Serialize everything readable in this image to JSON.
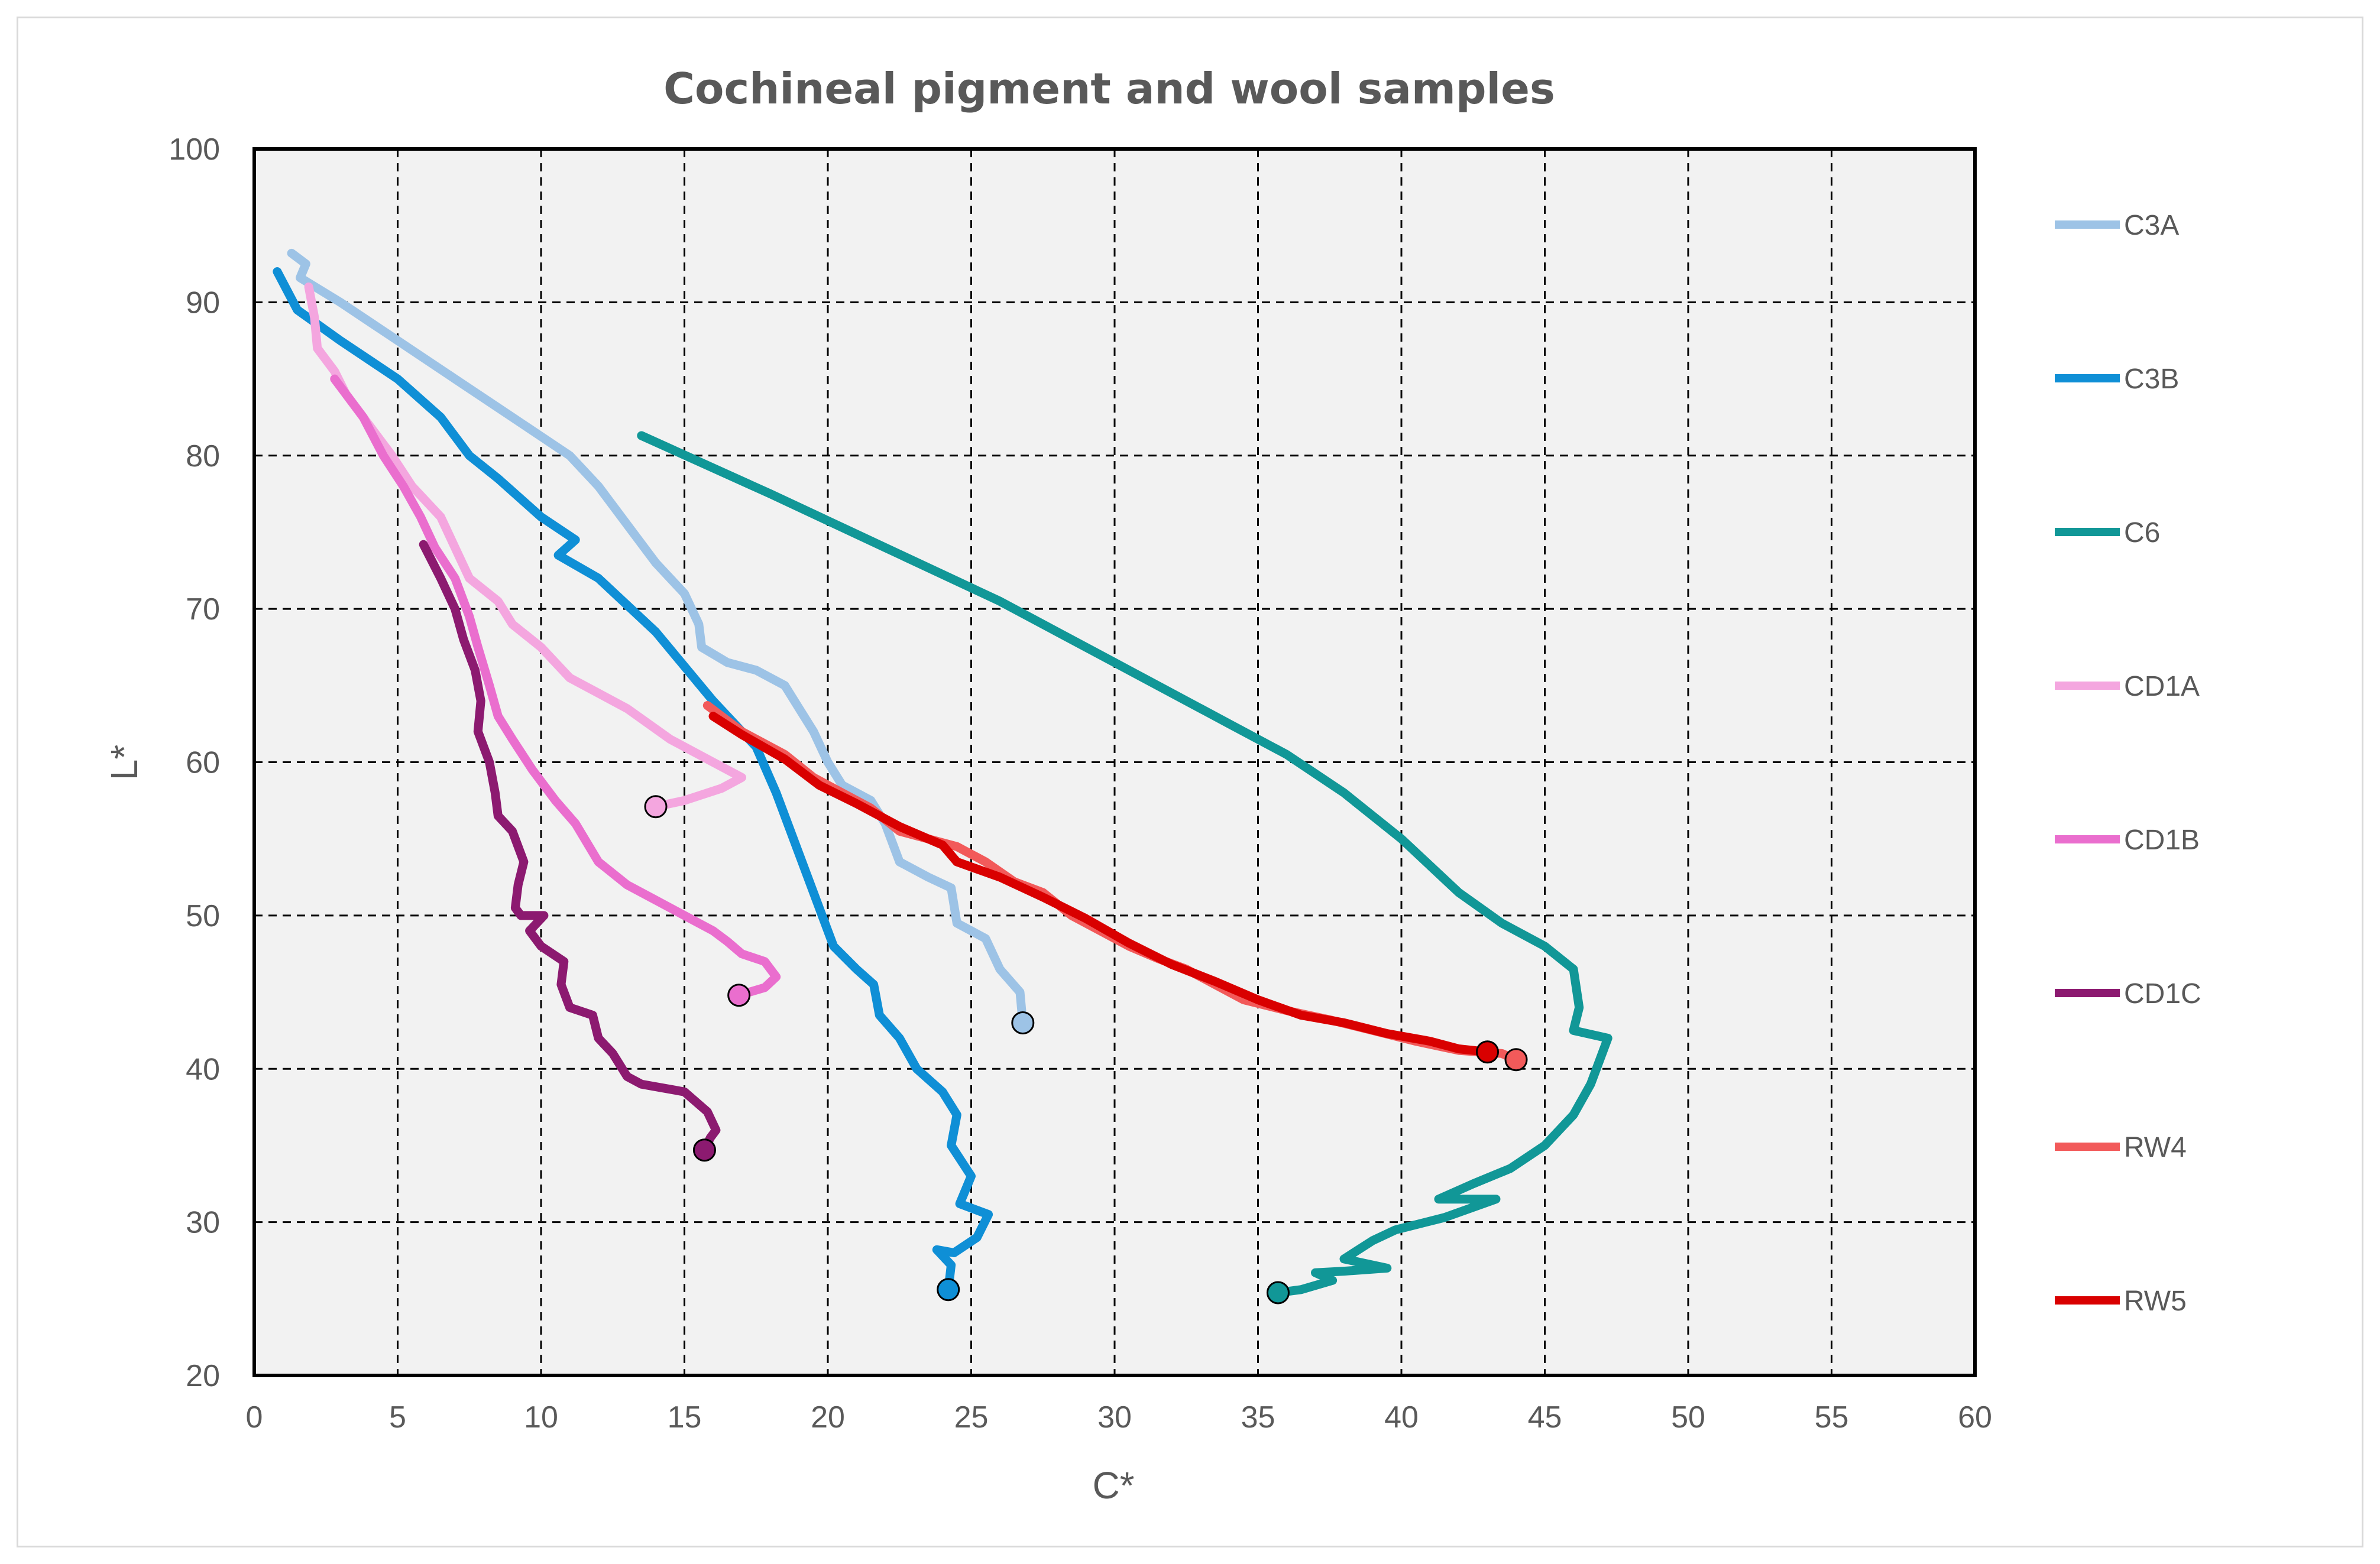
{
  "chart_data": {
    "type": "line",
    "title": "Cochineal pigment and wool samples",
    "xlabel": "C*",
    "ylabel": "L*",
    "xlim": [
      0,
      60
    ],
    "ylim": [
      20,
      100
    ],
    "xticks": [
      0,
      5,
      10,
      15,
      20,
      25,
      30,
      35,
      40,
      45,
      50,
      55,
      60
    ],
    "yticks": [
      20,
      30,
      40,
      50,
      60,
      70,
      80,
      90,
      100
    ],
    "grid": true,
    "legend_position": "right",
    "series": [
      {
        "name": "C3A",
        "color": "#9dc3e6",
        "points": [
          [
            1.3,
            93.2
          ],
          [
            1.8,
            92.5
          ],
          [
            1.6,
            91.6
          ],
          [
            3,
            90
          ],
          [
            5,
            87.5
          ],
          [
            7,
            85
          ],
          [
            9,
            82.5
          ],
          [
            11,
            80
          ],
          [
            12,
            78
          ],
          [
            13,
            75.5
          ],
          [
            14,
            73
          ],
          [
            15,
            71
          ],
          [
            15.5,
            69
          ],
          [
            15.6,
            67.5
          ],
          [
            16.5,
            66.5
          ],
          [
            17.5,
            66
          ],
          [
            18.5,
            65
          ],
          [
            19,
            63.5
          ],
          [
            19.5,
            62
          ],
          [
            20,
            60
          ],
          [
            20.5,
            58.5
          ],
          [
            21.5,
            57.5
          ],
          [
            22,
            56
          ],
          [
            22.5,
            53.5
          ],
          [
            23.5,
            52.5
          ],
          [
            24.3,
            51.8
          ],
          [
            24.5,
            49.5
          ],
          [
            25.5,
            48.5
          ],
          [
            26,
            46.5
          ],
          [
            26.7,
            45
          ],
          [
            26.8,
            43
          ]
        ],
        "end_marker": [
          26.8,
          43.0
        ]
      },
      {
        "name": "C3B",
        "color": "#0f8fd6",
        "points": [
          [
            0.8,
            92
          ],
          [
            1.5,
            89.5
          ],
          [
            3,
            87.5
          ],
          [
            5,
            85
          ],
          [
            6.5,
            82.5
          ],
          [
            7.5,
            80
          ],
          [
            8.5,
            78.5
          ],
          [
            10,
            76
          ],
          [
            11.2,
            74.5
          ],
          [
            10.6,
            73.5
          ],
          [
            12,
            72
          ],
          [
            14,
            68.5
          ],
          [
            16,
            64
          ],
          [
            17.5,
            61
          ],
          [
            18.2,
            58
          ],
          [
            19,
            54
          ],
          [
            19.8,
            50
          ],
          [
            20.2,
            48
          ],
          [
            21,
            46.5
          ],
          [
            21.6,
            45.5
          ],
          [
            21.8,
            43.5
          ],
          [
            22.5,
            42
          ],
          [
            23.1,
            40
          ],
          [
            24,
            38.5
          ],
          [
            24.5,
            37
          ],
          [
            24.3,
            35
          ],
          [
            25,
            33
          ],
          [
            24.6,
            31.2
          ],
          [
            25.6,
            30.5
          ],
          [
            25.2,
            29
          ],
          [
            24.4,
            28
          ],
          [
            23.8,
            28.2
          ],
          [
            24.3,
            27.2
          ],
          [
            24.2,
            25.6
          ]
        ],
        "end_marker": [
          24.2,
          25.6
        ]
      },
      {
        "name": "C6",
        "color": "#119797",
        "points": [
          [
            13.5,
            81.3
          ],
          [
            18,
            77.5
          ],
          [
            22,
            74
          ],
          [
            26,
            70.5
          ],
          [
            30,
            66.5
          ],
          [
            34,
            62.5
          ],
          [
            36,
            60.5
          ],
          [
            38,
            58
          ],
          [
            40,
            55
          ],
          [
            42,
            51.5
          ],
          [
            43.5,
            49.5
          ],
          [
            45,
            48
          ],
          [
            46,
            46.5
          ],
          [
            46.2,
            44
          ],
          [
            46,
            42.5
          ],
          [
            47.2,
            42
          ],
          [
            46.6,
            39
          ],
          [
            46,
            37
          ],
          [
            45,
            35
          ],
          [
            43.8,
            33.5
          ],
          [
            42.5,
            32.5
          ],
          [
            41.3,
            31.5
          ],
          [
            43.3,
            31.5
          ],
          [
            41.5,
            30.3
          ],
          [
            39.8,
            29.5
          ],
          [
            39,
            28.8
          ],
          [
            38,
            27.6
          ],
          [
            39.5,
            27
          ],
          [
            38,
            26.8
          ],
          [
            37,
            26.7
          ],
          [
            37.6,
            26.2
          ],
          [
            36.5,
            25.6
          ],
          [
            35.7,
            25.4
          ]
        ],
        "end_marker": [
          35.7,
          25.4
        ]
      },
      {
        "name": "CD1A",
        "color": "#f4a6df",
        "points": [
          [
            1.9,
            91
          ],
          [
            2.1,
            89
          ],
          [
            2.2,
            87
          ],
          [
            2.8,
            85.5
          ],
          [
            3.2,
            84
          ],
          [
            4,
            82
          ],
          [
            4.8,
            80
          ],
          [
            5.5,
            78
          ],
          [
            6.5,
            76
          ],
          [
            7,
            74
          ],
          [
            7.5,
            72
          ],
          [
            8.5,
            70.5
          ],
          [
            9,
            69
          ],
          [
            10,
            67.5
          ],
          [
            11,
            65.5
          ],
          [
            13,
            63.5
          ],
          [
            14.5,
            61.5
          ],
          [
            16,
            60
          ],
          [
            17,
            59
          ],
          [
            16.3,
            58.3
          ],
          [
            15,
            57.5
          ],
          [
            14,
            57.1
          ]
        ],
        "end_marker": [
          14.0,
          57.1
        ]
      },
      {
        "name": "CD1B",
        "color": "#ea6ece",
        "points": [
          [
            2.8,
            85
          ],
          [
            3.8,
            82.5
          ],
          [
            4.5,
            80
          ],
          [
            5.2,
            78
          ],
          [
            5.8,
            76
          ],
          [
            6.3,
            74
          ],
          [
            7,
            72
          ],
          [
            7.5,
            69.5
          ],
          [
            7.8,
            67.5
          ],
          [
            8.2,
            65
          ],
          [
            8.5,
            63
          ],
          [
            9,
            61.5
          ],
          [
            9.7,
            59.5
          ],
          [
            10.5,
            57.5
          ],
          [
            11.2,
            56
          ],
          [
            12,
            53.5
          ],
          [
            13,
            52
          ],
          [
            14,
            51
          ],
          [
            15,
            50
          ],
          [
            16,
            49
          ],
          [
            16.5,
            48.3
          ],
          [
            17,
            47.5
          ],
          [
            17.8,
            47
          ],
          [
            18.2,
            46
          ],
          [
            17.8,
            45.3
          ],
          [
            16.9,
            44.8
          ]
        ],
        "end_marker": [
          16.9,
          44.8
        ]
      },
      {
        "name": "CD1C",
        "color": "#8c1a70",
        "points": [
          [
            5.9,
            74.2
          ],
          [
            6.5,
            72
          ],
          [
            7,
            70
          ],
          [
            7.3,
            68
          ],
          [
            7.7,
            66
          ],
          [
            7.9,
            64
          ],
          [
            7.8,
            62
          ],
          [
            8,
            61
          ],
          [
            8.2,
            60
          ],
          [
            8.4,
            58
          ],
          [
            8.5,
            56.5
          ],
          [
            9,
            55.5
          ],
          [
            9.4,
            53.5
          ],
          [
            9.2,
            52
          ],
          [
            9.1,
            50.5
          ],
          [
            9.3,
            50
          ],
          [
            10.1,
            50
          ],
          [
            9.6,
            49
          ],
          [
            10,
            48
          ],
          [
            10.8,
            47
          ],
          [
            10.7,
            45.5
          ],
          [
            11,
            44
          ],
          [
            11.8,
            43.5
          ],
          [
            12,
            42
          ],
          [
            12.5,
            41
          ],
          [
            13,
            39.5
          ],
          [
            13.5,
            39
          ],
          [
            15,
            38.5
          ],
          [
            15.8,
            37.2
          ],
          [
            16.1,
            36
          ],
          [
            15.9,
            35.5
          ],
          [
            15.7,
            34.7
          ]
        ],
        "end_marker": [
          15.7,
          34.7
        ]
      },
      {
        "name": "RW4",
        "color": "#f25a5a",
        "points": [
          [
            15.8,
            63.7
          ],
          [
            17,
            62
          ],
          [
            18.5,
            60.5
          ],
          [
            19.5,
            59
          ],
          [
            20.5,
            58
          ],
          [
            21.5,
            57
          ],
          [
            22.5,
            55.5
          ],
          [
            23.5,
            55
          ],
          [
            24.5,
            54.5
          ],
          [
            25.5,
            53.5
          ],
          [
            26.5,
            52.2
          ],
          [
            27.5,
            51.5
          ],
          [
            28.5,
            50
          ],
          [
            29.5,
            49
          ],
          [
            30.5,
            48
          ],
          [
            31.5,
            47.2
          ],
          [
            32.5,
            46.5
          ],
          [
            33.5,
            45.5
          ],
          [
            34.5,
            44.5
          ],
          [
            36,
            43.8
          ],
          [
            37.5,
            43.2
          ],
          [
            39,
            42.5
          ],
          [
            40.5,
            41.8
          ],
          [
            42,
            41.2
          ],
          [
            43.5,
            41
          ],
          [
            44,
            40.6
          ]
        ],
        "end_marker": [
          44.0,
          40.6
        ]
      },
      {
        "name": "RW5",
        "color": "#d90000",
        "points": [
          [
            16,
            63
          ],
          [
            17,
            61.8
          ],
          [
            18.5,
            60.2
          ],
          [
            19.7,
            58.5
          ],
          [
            21,
            57.3
          ],
          [
            22.5,
            55.8
          ],
          [
            24,
            54.6
          ],
          [
            24.5,
            53.5
          ],
          [
            26,
            52.5
          ],
          [
            27.5,
            51.2
          ],
          [
            29,
            49.8
          ],
          [
            30.5,
            48.2
          ],
          [
            32,
            46.8
          ],
          [
            33.5,
            45.7
          ],
          [
            35,
            44.5
          ],
          [
            36.5,
            43.5
          ],
          [
            38,
            43
          ],
          [
            39.5,
            42.3
          ],
          [
            41,
            41.8
          ],
          [
            42,
            41.3
          ],
          [
            43,
            41.1
          ]
        ],
        "end_marker": [
          43.0,
          41.1
        ]
      }
    ]
  }
}
